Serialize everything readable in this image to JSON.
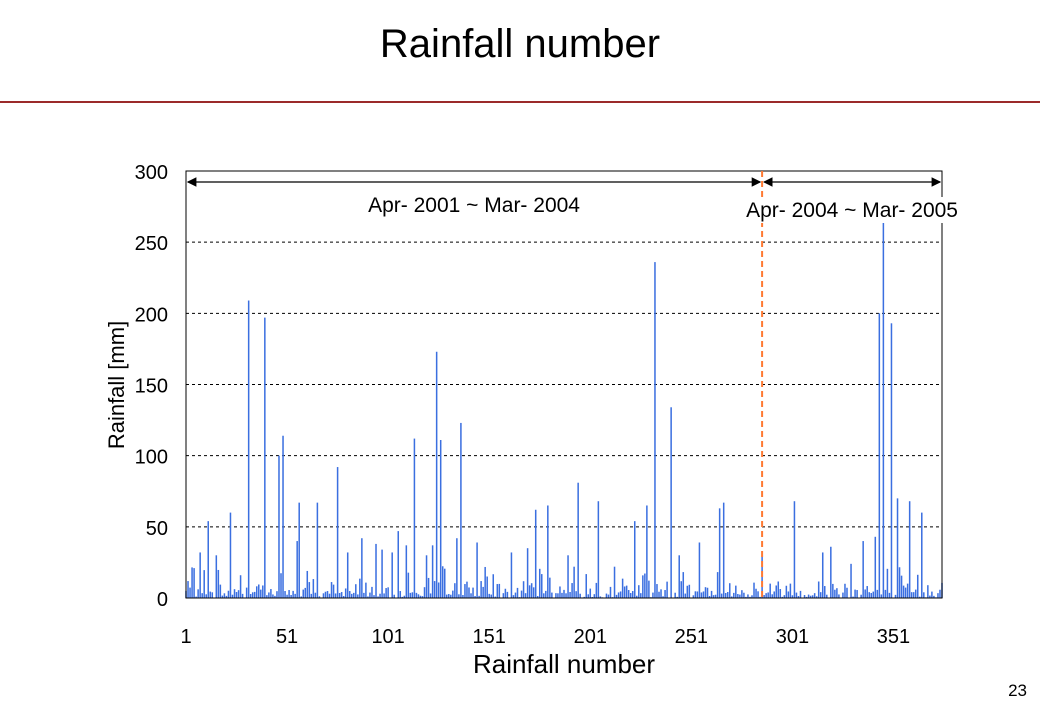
{
  "slide": {
    "title": "Rainfall number",
    "page_number": "23"
  },
  "chart_data": {
    "type": "bar",
    "xlabel": "Rainfall number",
    "ylabel": "Rainfall [mm]",
    "ylim": [
      0,
      300
    ],
    "xlim": [
      1,
      375
    ],
    "y_ticks": [
      "0",
      "50",
      "100",
      "150",
      "200",
      "250",
      "300"
    ],
    "x_ticks": [
      "1",
      "51",
      "101",
      "151",
      "201",
      "251",
      "301",
      "351"
    ],
    "x_tick_values": [
      1,
      51,
      101,
      151,
      201,
      251,
      301,
      351
    ],
    "grid": "horizontal dashed",
    "bar_color": "#3b6fe0",
    "divider": {
      "x": 286,
      "color": "#ff7a33"
    },
    "annotations": [
      {
        "text": "Apr- 2001 ~ Mar- 2004",
        "x_from": 1,
        "x_to": 286
      },
      {
        "text": "Apr- 2004 ~ Mar- 2005",
        "x_from": 286,
        "x_to": 375
      }
    ],
    "spikes": [
      [
        5,
        21
      ],
      [
        8,
        32
      ],
      [
        12,
        54
      ],
      [
        16,
        30
      ],
      [
        23,
        60
      ],
      [
        28,
        16
      ],
      [
        32,
        209
      ],
      [
        40,
        197
      ],
      [
        47,
        100
      ],
      [
        49,
        114
      ],
      [
        56,
        40
      ],
      [
        57,
        67
      ],
      [
        66,
        67
      ],
      [
        76,
        92
      ],
      [
        81,
        32
      ],
      [
        88,
        42
      ],
      [
        95,
        38
      ],
      [
        98,
        34
      ],
      [
        103,
        32
      ],
      [
        106,
        47
      ],
      [
        110,
        37
      ],
      [
        114,
        112
      ],
      [
        120,
        30
      ],
      [
        123,
        37
      ],
      [
        125,
        173
      ],
      [
        127,
        111
      ],
      [
        135,
        42
      ],
      [
        137,
        123
      ],
      [
        145,
        39
      ],
      [
        162,
        32
      ],
      [
        170,
        35
      ],
      [
        174,
        62
      ],
      [
        180,
        65
      ],
      [
        190,
        30
      ],
      [
        195,
        81
      ],
      [
        205,
        68
      ],
      [
        213,
        22
      ],
      [
        223,
        54
      ],
      [
        229,
        65
      ],
      [
        233,
        236
      ],
      [
        241,
        134
      ],
      [
        245,
        30
      ],
      [
        255,
        39
      ],
      [
        265,
        63
      ],
      [
        267,
        67
      ],
      [
        286,
        29
      ],
      [
        302,
        68
      ],
      [
        316,
        32
      ],
      [
        320,
        36
      ],
      [
        330,
        24
      ],
      [
        336,
        40
      ],
      [
        342,
        43
      ],
      [
        344,
        200
      ],
      [
        346,
        270
      ],
      [
        350,
        193
      ],
      [
        353,
        70
      ],
      [
        359,
        68
      ],
      [
        365,
        60
      ]
    ]
  }
}
